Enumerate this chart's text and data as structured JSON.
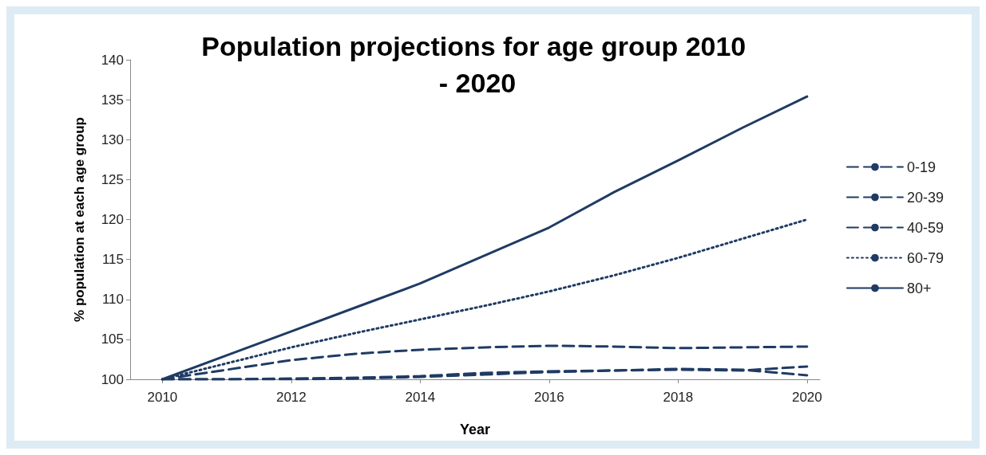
{
  "chart_data": {
    "type": "line",
    "title": "Population projections for age group 2010 - 2020",
    "xlabel": "Year",
    "ylabel": "% population at each age group",
    "x": [
      2010,
      2011,
      2012,
      2013,
      2014,
      2015,
      2016,
      2017,
      2018,
      2019,
      2020
    ],
    "series": [
      {
        "name": "0-19",
        "color": "#1f3b63",
        "line_style": "dashed",
        "values": [
          100,
          100,
          100.1,
          100.2,
          100.4,
          100.8,
          101,
          101.1,
          101.3,
          101.2,
          100.5
        ]
      },
      {
        "name": "20-39",
        "color": "#1f3b63",
        "line_style": "dashed",
        "values": [
          100,
          100,
          100,
          100.1,
          100.3,
          100.6,
          100.9,
          101.1,
          101.2,
          101.1,
          101.6
        ]
      },
      {
        "name": "40-59",
        "color": "#1f3b63",
        "line_style": "dashed",
        "values": [
          100,
          101.2,
          102.4,
          103.2,
          103.7,
          104,
          104.2,
          104.1,
          103.9,
          104,
          104.1
        ]
      },
      {
        "name": "60-79",
        "color": "#1f3b63",
        "line_style": "dotted",
        "values": [
          100,
          102,
          104,
          105.8,
          107.5,
          109.2,
          111,
          113,
          115.2,
          117.6,
          120
        ]
      },
      {
        "name": "80+",
        "color": "#1f3b63",
        "line_style": "solid",
        "values": [
          100,
          103,
          106,
          109,
          112,
          115.5,
          119,
          123.4,
          127.4,
          131.5,
          135.4
        ]
      }
    ],
    "xlim": [
      2009.5,
      2020.2
    ],
    "xticks": [
      2010,
      2012,
      2014,
      2016,
      2018,
      2020
    ],
    "ylim": [
      100,
      140
    ],
    "yticks": [
      100,
      105,
      110,
      115,
      120,
      125,
      130,
      135,
      140
    ],
    "grid": false,
    "legend": "right",
    "marker": "none"
  }
}
